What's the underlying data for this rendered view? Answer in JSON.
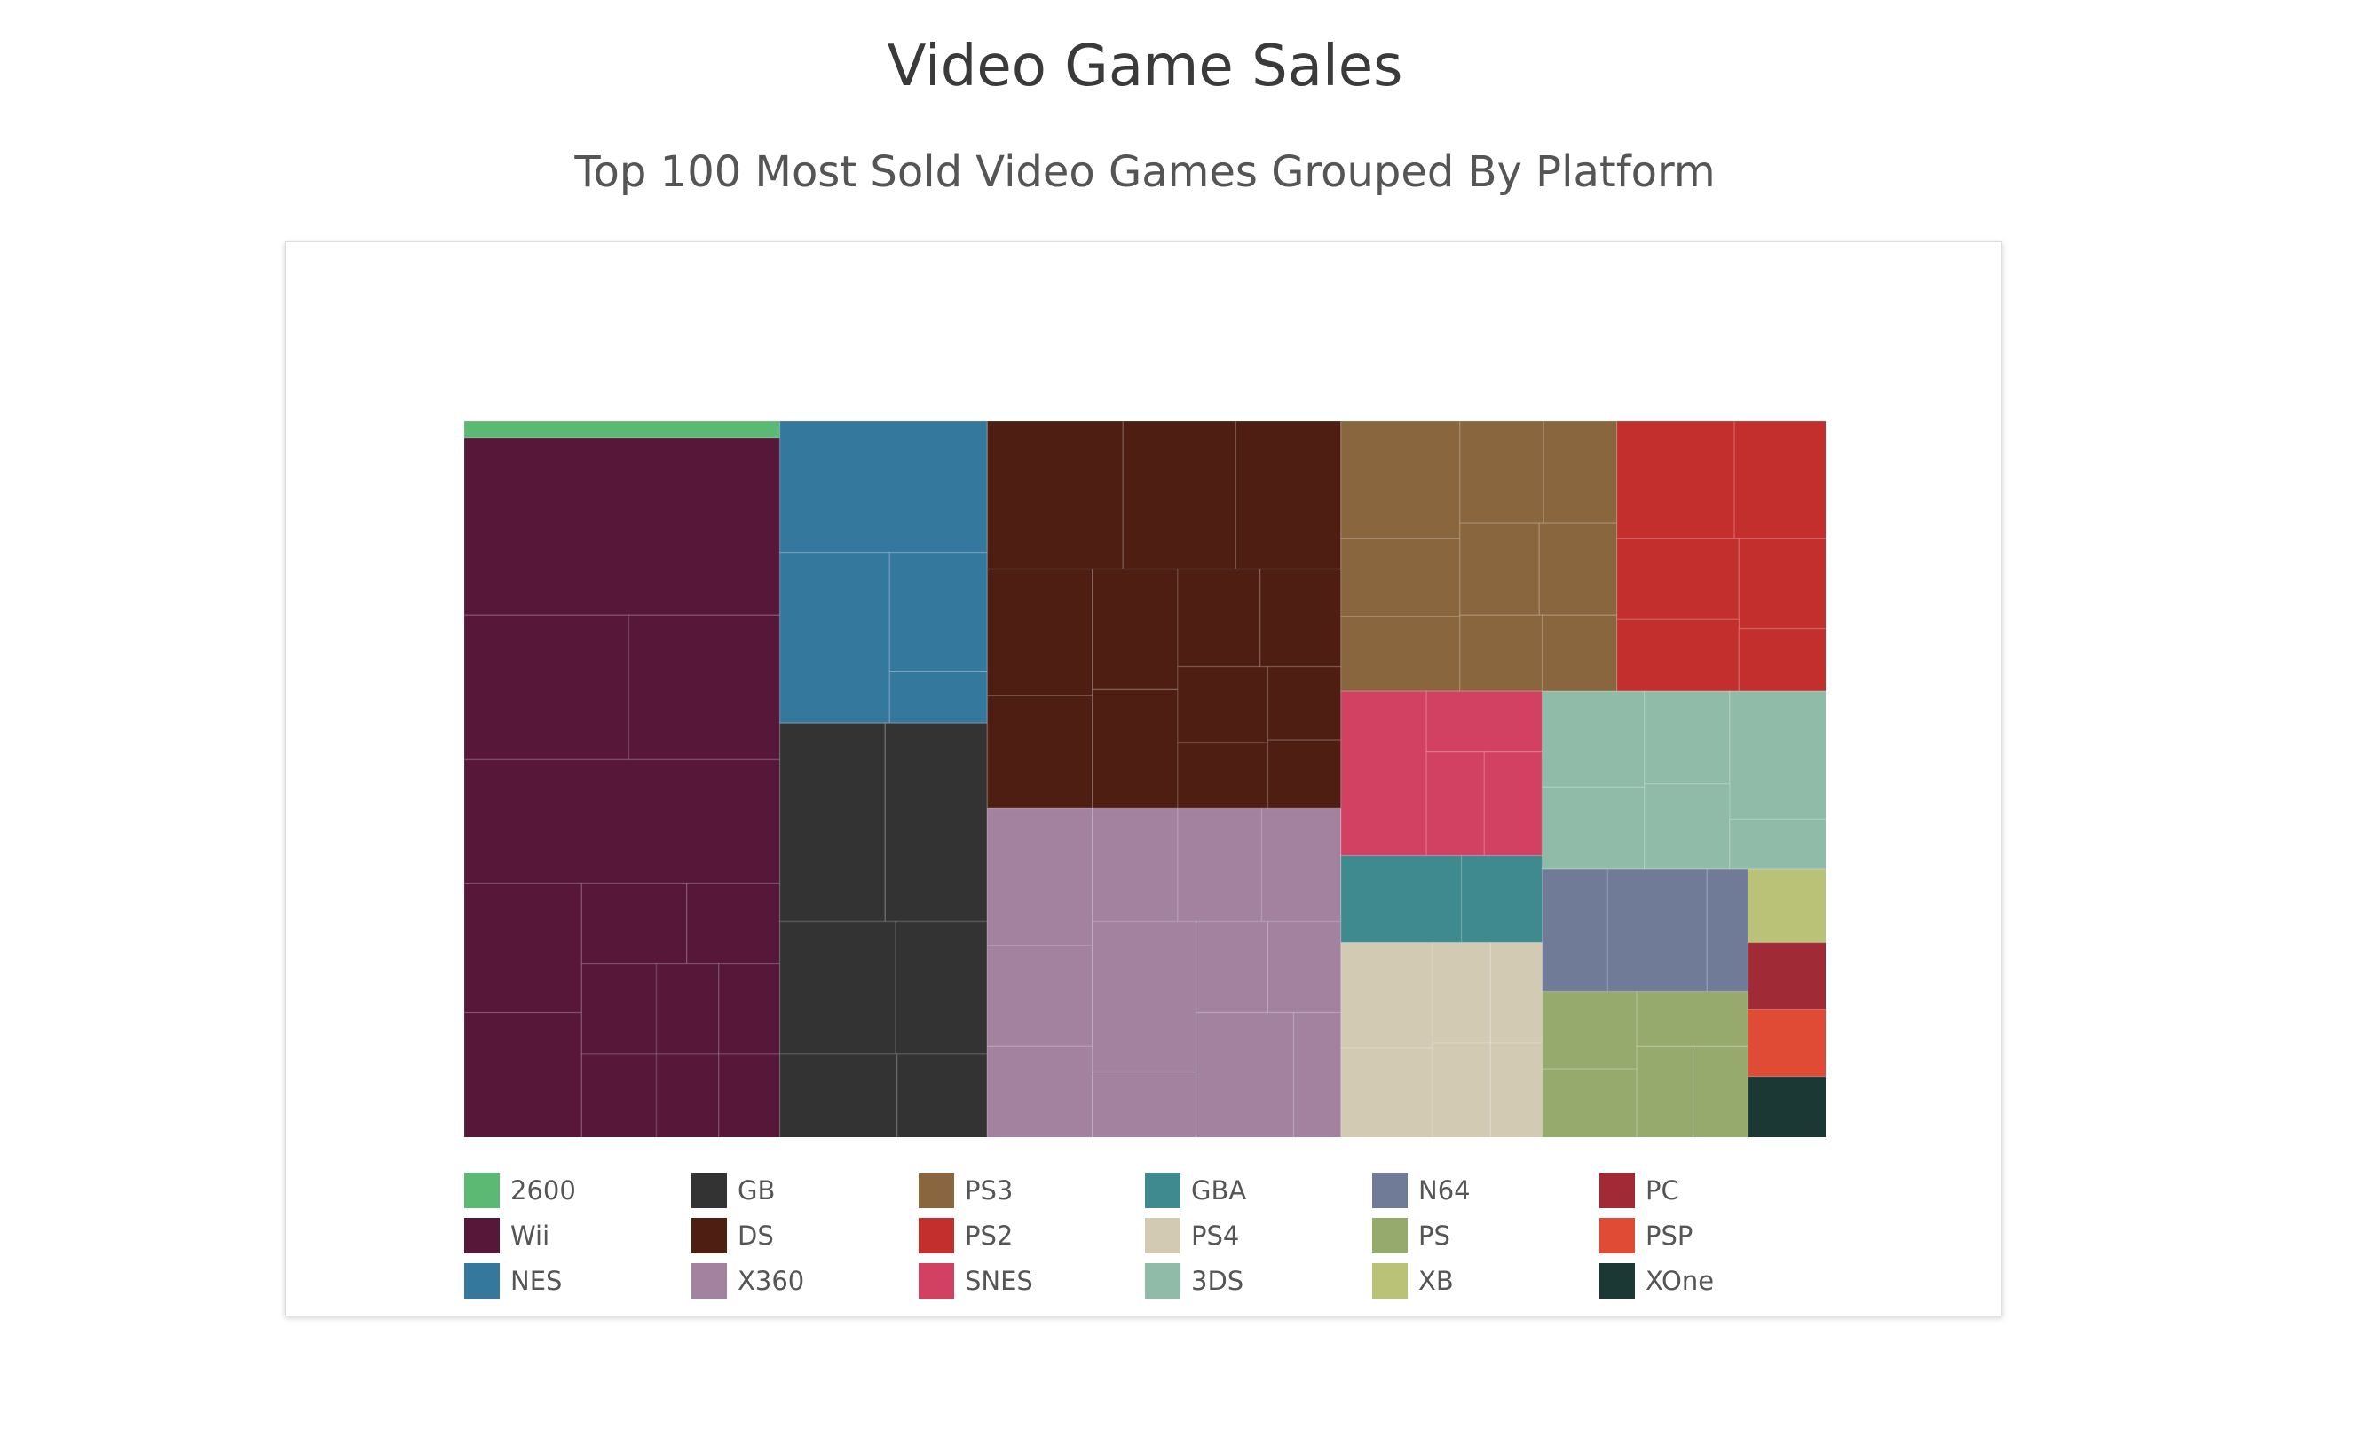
{
  "chart_data": {
    "type": "treemap",
    "title": "Video Game Sales",
    "subtitle": "Top 100 Most Sold Video Games Grouped By Platform",
    "legend_position": "bottom",
    "legend": [
      {
        "name": "2600",
        "color": "#5BB974"
      },
      {
        "name": "Wii",
        "color": "#571738"
      },
      {
        "name": "NES",
        "color": "#35789E"
      },
      {
        "name": "GB",
        "color": "#333333"
      },
      {
        "name": "DS",
        "color": "#4F1E13"
      },
      {
        "name": "X360",
        "color": "#A2829F"
      },
      {
        "name": "PS3",
        "color": "#8A663E"
      },
      {
        "name": "PS2",
        "color": "#C22F2D"
      },
      {
        "name": "SNES",
        "color": "#D24162"
      },
      {
        "name": "GBA",
        "color": "#3E8A8E"
      },
      {
        "name": "PS4",
        "color": "#D2CAB3"
      },
      {
        "name": "3DS",
        "color": "#8FBBA8"
      },
      {
        "name": "N64",
        "color": "#707B98"
      },
      {
        "name": "PS",
        "color": "#97AA6E"
      },
      {
        "name": "XB",
        "color": "#B9C276"
      },
      {
        "name": "PC",
        "color": "#A02A35"
      },
      {
        "name": "PSP",
        "color": "#E04B36"
      },
      {
        "name": "XOne",
        "color": "#1B3835"
      }
    ]
  }
}
